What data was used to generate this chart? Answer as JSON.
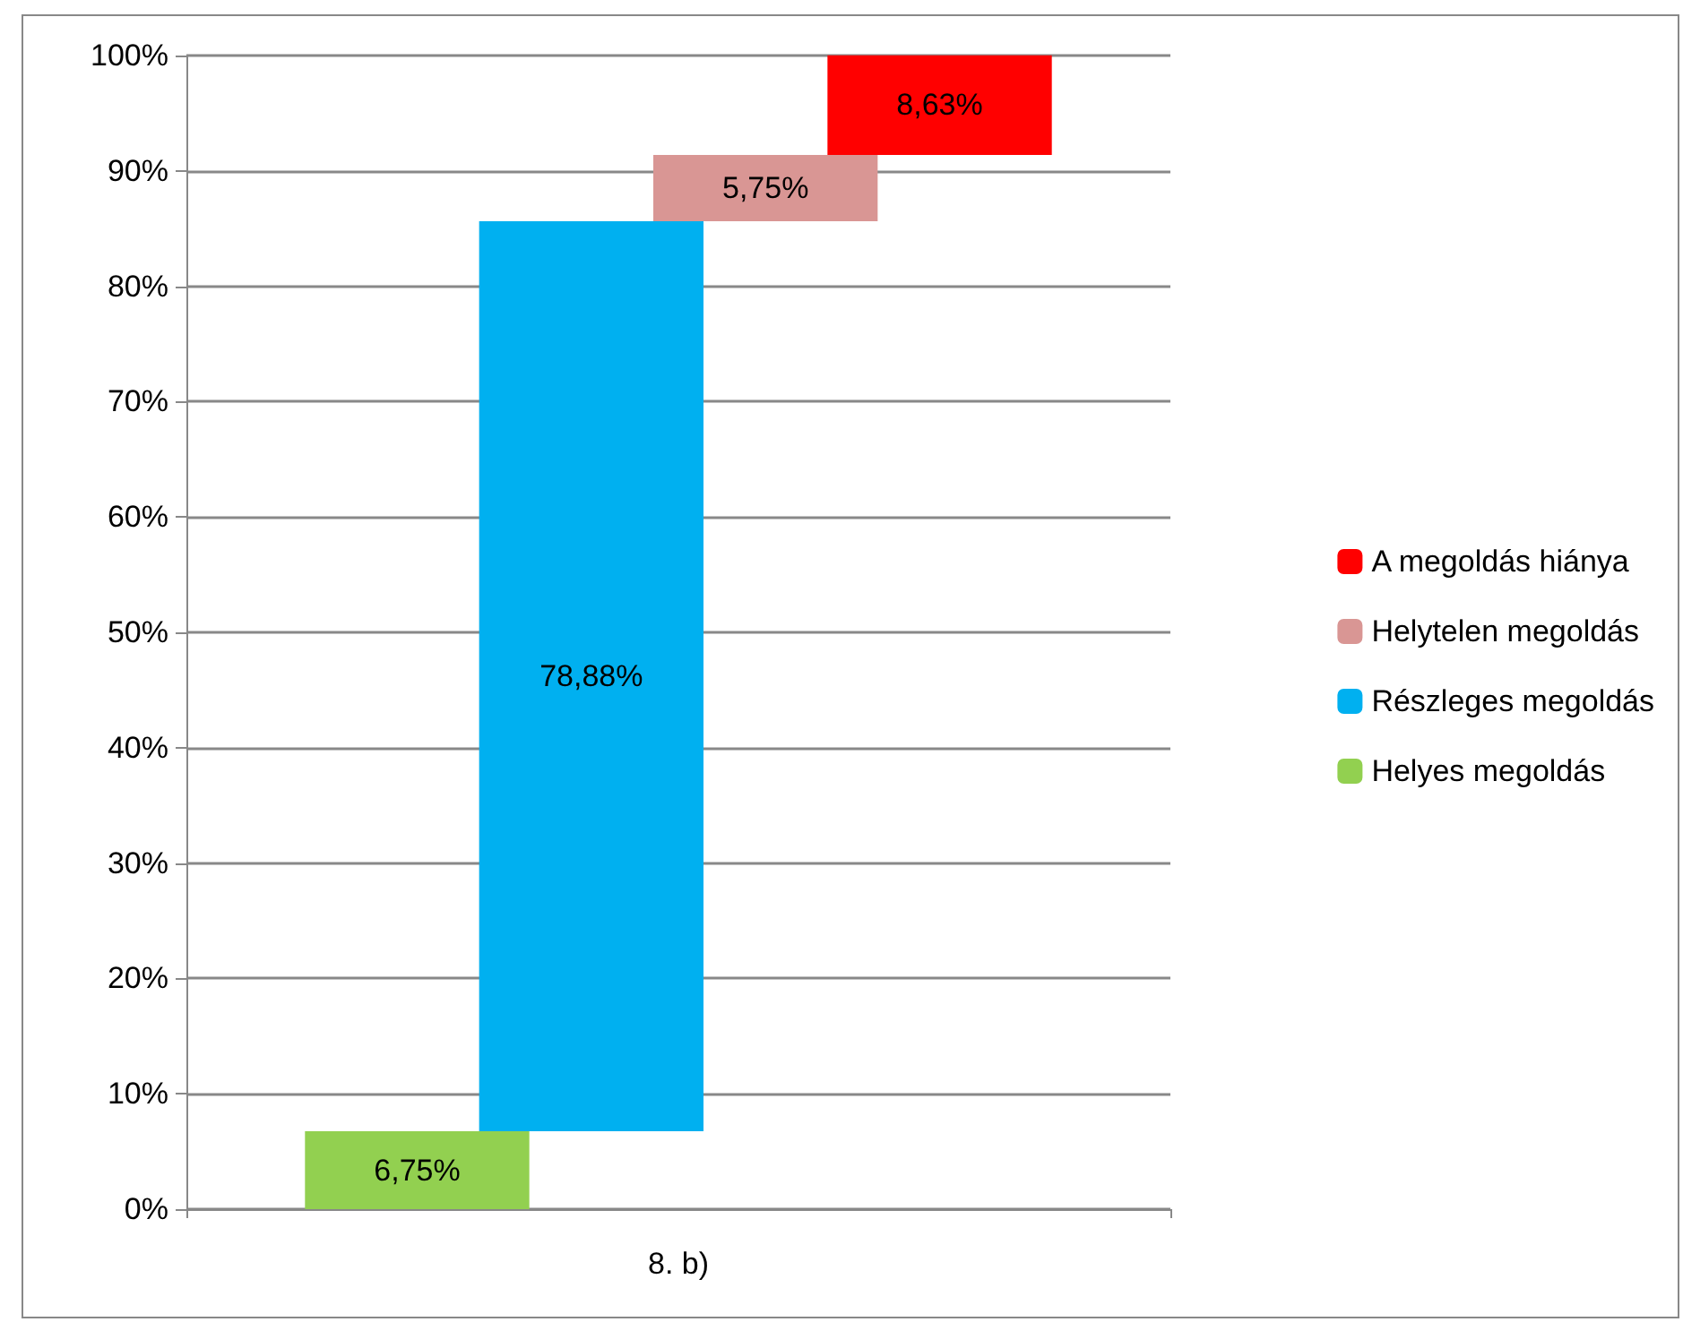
{
  "chart_data": {
    "type": "bar",
    "categories": [
      "8. b)"
    ],
    "stacked": true,
    "series": [
      {
        "name": "Helyes megoldás",
        "color": "#92d050",
        "values": [
          6.75
        ],
        "value_labels": [
          "6,75%"
        ]
      },
      {
        "name": "Részleges megoldás",
        "color": "#00b0f0",
        "values": [
          78.88
        ],
        "value_labels": [
          "78,88%"
        ]
      },
      {
        "name": "Helytelen megoldás",
        "color": "#d99694",
        "values": [
          5.75
        ],
        "value_labels": [
          "5,75%"
        ]
      },
      {
        "name": "A megoldás hiánya",
        "color": "#ff0000",
        "values": [
          8.63
        ],
        "value_labels": [
          "8,63%"
        ]
      }
    ],
    "ylim": [
      0,
      100
    ],
    "yticks": [
      {
        "value": 0,
        "label": "0%"
      },
      {
        "value": 10,
        "label": "10%"
      },
      {
        "value": 20,
        "label": "20%"
      },
      {
        "value": 30,
        "label": "30%"
      },
      {
        "value": 40,
        "label": "40%"
      },
      {
        "value": 50,
        "label": "50%"
      },
      {
        "value": 60,
        "label": "60%"
      },
      {
        "value": 70,
        "label": "70%"
      },
      {
        "value": 80,
        "label": "80%"
      },
      {
        "value": 90,
        "label": "90%"
      },
      {
        "value": 100,
        "label": "100%"
      }
    ],
    "grid": "y",
    "legend": "right"
  }
}
